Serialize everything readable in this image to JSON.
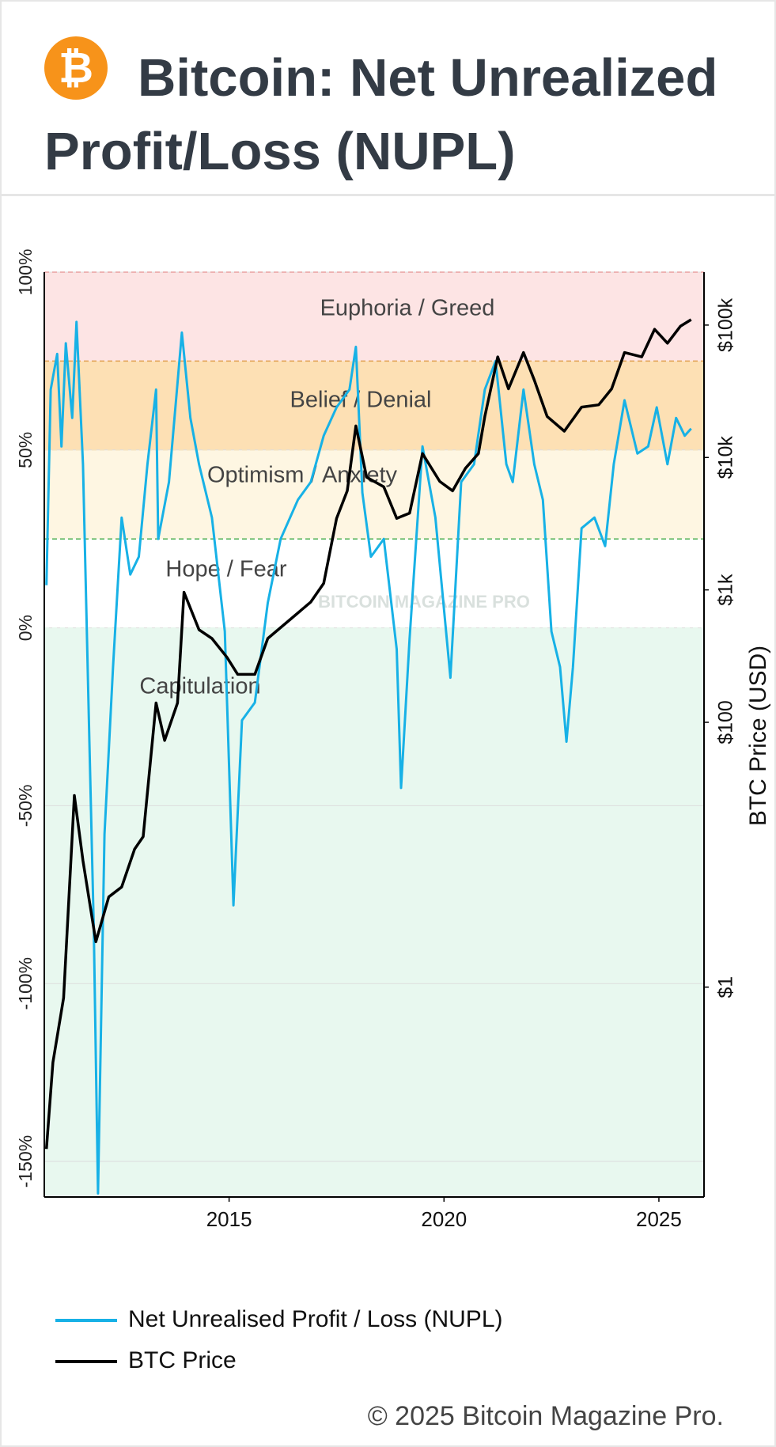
{
  "chart_data": {
    "type": "line",
    "title": "Bitcoin: Net Unrealized Profit/Loss (NUPL)",
    "watermark": "BITCOIN MAGAZINE PRO",
    "y2_label": "BTC Price (USD)",
    "copyright": "© 2025 Bitcoin Magazine Pro.",
    "xlim": [
      2010.7,
      2026.05
    ],
    "xticks": [
      2015,
      2020,
      2025
    ],
    "ylim": [
      -160,
      100
    ],
    "yticks": [
      {
        "value": -150,
        "label": "-150%"
      },
      {
        "value": -100,
        "label": "-100%"
      },
      {
        "value": -50,
        "label": "-50%"
      },
      {
        "value": 0,
        "label": "0%"
      },
      {
        "value": 50,
        "label": "50%"
      },
      {
        "value": 100,
        "label": "100%"
      }
    ],
    "y2lim": [
      0.026,
      251000
    ],
    "y2scale": "log",
    "y2ticks": [
      {
        "value": 1,
        "label": "$1"
      },
      {
        "value": 100,
        "label": "$100"
      },
      {
        "value": 1000,
        "label": "$1k"
      },
      {
        "value": 10000,
        "label": "$10k"
      },
      {
        "value": 100000,
        "label": "$100k"
      }
    ],
    "grid": true,
    "zones": [
      {
        "name": "Euphoria / Greed",
        "from": 75,
        "to": 100,
        "color": "#fde4e4",
        "border": "#e8a0a0"
      },
      {
        "name": "Belief / Denial",
        "from": 50,
        "to": 75,
        "color": "#fde0b4",
        "border": "#e0a050"
      },
      {
        "name": "Optimism / Anxiety",
        "from": 25,
        "to": 50,
        "color": "#fef6e2",
        "border": "#f3e3c0"
      },
      {
        "name": "Hope / Fear",
        "from": 0,
        "to": 25,
        "color": "#ffffff",
        "border": "#4caf50"
      },
      {
        "name": "Capitulation",
        "from": -160,
        "to": 0,
        "color": "#e8f8ef",
        "border": "#e8f8ef"
      }
    ],
    "series": [
      {
        "name": "Net Unrealised Profit / Loss (NUPL)",
        "color": "#17b1e6",
        "axis": "y",
        "x": [
          2010.75,
          2010.85,
          2011.0,
          2011.1,
          2011.2,
          2011.35,
          2011.45,
          2011.6,
          2011.75,
          2011.85,
          2011.95,
          2012.1,
          2012.3,
          2012.5,
          2012.7,
          2012.9,
          2013.1,
          2013.3,
          2013.35,
          2013.6,
          2013.9,
          2014.1,
          2014.3,
          2014.6,
          2014.9,
          2015.05,
          2015.1,
          2015.3,
          2015.6,
          2015.9,
          2016.2,
          2016.6,
          2016.9,
          2017.2,
          2017.5,
          2017.8,
          2017.95,
          2018.1,
          2018.3,
          2018.6,
          2018.9,
          2019.0,
          2019.2,
          2019.5,
          2019.8,
          2020.15,
          2020.4,
          2020.7,
          2020.95,
          2021.2,
          2021.45,
          2021.6,
          2021.85,
          2022.1,
          2022.3,
          2022.5,
          2022.7,
          2022.85,
          2023.0,
          2023.2,
          2023.5,
          2023.75,
          2023.95,
          2024.2,
          2024.5,
          2024.75,
          2024.95,
          2025.2,
          2025.4,
          2025.6,
          2025.75
        ],
        "values": [
          12,
          67,
          77,
          51,
          80,
          59,
          86,
          46,
          -32,
          -84,
          -159,
          -58,
          -11,
          31,
          15,
          20,
          46,
          67,
          25,
          41,
          83,
          59,
          46,
          31,
          -1,
          -58,
          -78,
          -26,
          -21,
          7,
          25,
          36,
          41,
          54,
          62,
          67,
          79,
          38,
          20,
          25,
          -6,
          -45,
          -3,
          51,
          31,
          -14,
          41,
          46,
          67,
          75,
          46,
          41,
          67,
          46,
          36,
          -1,
          -11,
          -32,
          -11,
          28,
          31,
          23,
          46,
          64,
          49,
          51,
          62,
          46,
          59,
          54,
          56
        ]
      },
      {
        "name": "BTC Price",
        "color": "#000000",
        "axis": "y2",
        "x": [
          2010.75,
          2010.9,
          2011.15,
          2011.4,
          2011.6,
          2011.9,
          2012.2,
          2012.5,
          2012.8,
          2013.0,
          2013.3,
          2013.5,
          2013.8,
          2013.95,
          2014.3,
          2014.6,
          2014.95,
          2015.2,
          2015.6,
          2015.9,
          2016.4,
          2016.9,
          2017.2,
          2017.5,
          2017.75,
          2017.95,
          2018.2,
          2018.6,
          2018.9,
          2019.2,
          2019.5,
          2019.9,
          2020.2,
          2020.5,
          2020.8,
          2020.95,
          2021.25,
          2021.5,
          2021.85,
          2022.1,
          2022.4,
          2022.8,
          2023.2,
          2023.6,
          2023.9,
          2024.2,
          2024.6,
          2024.9,
          2025.2,
          2025.5,
          2025.75
        ],
        "values": [
          0.06,
          0.27,
          0.83,
          28,
          9,
          2.2,
          4.8,
          5.7,
          11,
          13.7,
          140,
          73,
          140,
          960,
          500,
          430,
          310,
          230,
          230,
          430,
          590,
          810,
          1120,
          3470,
          5600,
          17300,
          7100,
          6000,
          3470,
          3800,
          10700,
          6600,
          5600,
          8300,
          10700,
          20400,
          57500,
          33000,
          62000,
          38500,
          20400,
          15800,
          24000,
          25000,
          33000,
          62000,
          57500,
          93000,
          73000,
          98000,
          110000
        ]
      }
    ]
  }
}
